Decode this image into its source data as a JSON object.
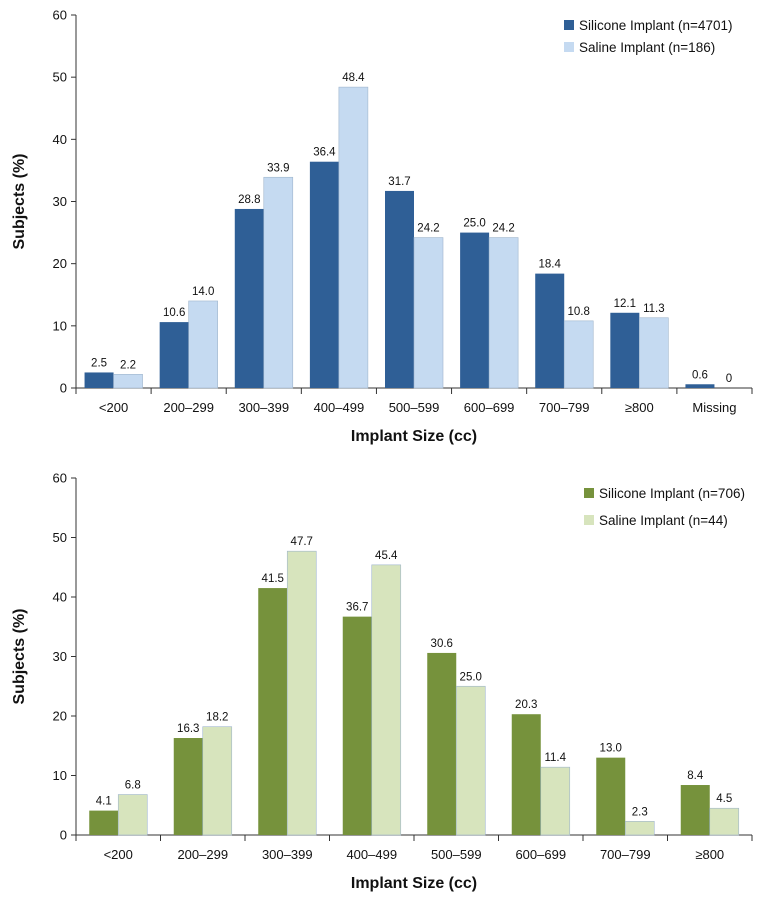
{
  "chart_data": [
    {
      "type": "bar",
      "xlabel": "Implant Size (cc)",
      "ylabel": "Subjects (%)",
      "ylim": [
        0,
        60
      ],
      "yticks": [
        0,
        10,
        20,
        30,
        40,
        50,
        60
      ],
      "legend_position": "top-right",
      "categories": [
        "<200",
        "200–299",
        "300–399",
        "400–499",
        "500–599",
        "600–699",
        "700–799",
        "≥800",
        "Missing"
      ],
      "series": [
        {
          "name": "Silicone Implant (n=4701)",
          "color": "#2f5f96",
          "values": [
            2.5,
            10.6,
            28.8,
            36.4,
            31.7,
            25.0,
            18.4,
            12.1,
            0.6
          ],
          "labels": [
            "2.5",
            "10.6",
            "28.8",
            "36.4",
            "31.7",
            "25.0",
            "18.4",
            "12.1",
            "0.6"
          ]
        },
        {
          "name": "Saline Implant (n=186)",
          "color": "#c5daf1",
          "values": [
            2.2,
            14.0,
            33.9,
            48.4,
            24.2,
            24.2,
            10.8,
            11.3,
            0
          ],
          "labels": [
            "2.2",
            "14.0",
            "33.9",
            "48.4",
            "24.2",
            "24.2",
            "10.8",
            "11.3",
            "0"
          ]
        }
      ]
    },
    {
      "type": "bar",
      "xlabel": "Implant Size (cc)",
      "ylabel": "Subjects (%)",
      "ylim": [
        0,
        60
      ],
      "yticks": [
        0,
        10,
        20,
        30,
        40,
        50,
        60
      ],
      "legend_position": "top-right",
      "categories": [
        "<200",
        "200–299",
        "300–399",
        "400–499",
        "500–599",
        "600–699",
        "700–799",
        "≥800"
      ],
      "series": [
        {
          "name": "Silicone Implant (n=706)",
          "color": "#76923c",
          "values": [
            4.1,
            16.3,
            41.5,
            36.7,
            30.6,
            20.3,
            13.0,
            8.4
          ],
          "labels": [
            "4.1",
            "16.3",
            "41.5",
            "36.7",
            "30.6",
            "20.3",
            "13.0",
            "8.4"
          ]
        },
        {
          "name": "Saline Implant (n=44)",
          "color": "#d7e4bd",
          "values": [
            6.8,
            18.2,
            47.7,
            45.4,
            25.0,
            11.4,
            2.3,
            4.5
          ],
          "labels": [
            "6.8",
            "18.2",
            "47.7",
            "45.4",
            "25.0",
            "11.4",
            "2.3",
            "4.5"
          ]
        }
      ]
    }
  ]
}
